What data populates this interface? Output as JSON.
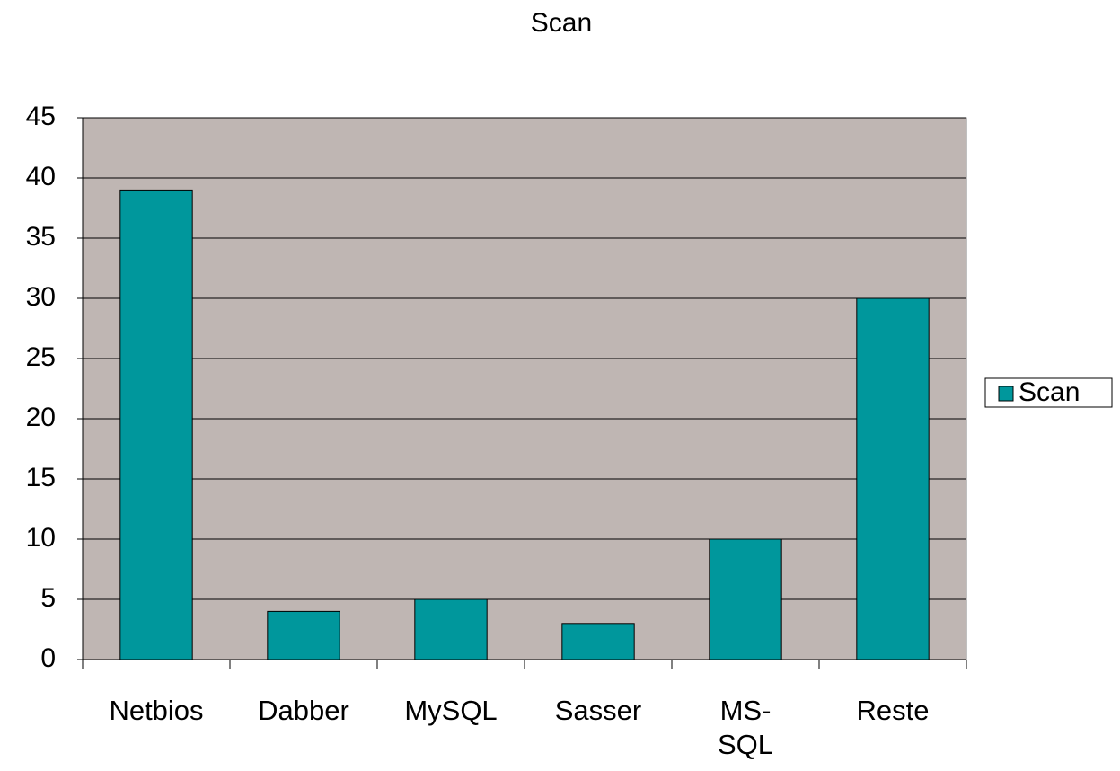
{
  "chart_data": {
    "type": "bar",
    "title": "Scan",
    "categories": [
      "Netbios",
      "Dabber",
      "MySQL",
      "Sasser",
      "MS-SQL",
      "Reste"
    ],
    "series": [
      {
        "name": "Scan",
        "color": "#00979c",
        "values": [
          39,
          4,
          5,
          3,
          10,
          30
        ]
      }
    ],
    "ylim": [
      0,
      45
    ],
    "yticks": [
      0,
      5,
      10,
      15,
      20,
      25,
      30,
      35,
      40,
      45
    ],
    "grid": true,
    "legend": "right",
    "plot_background": "#bfb6b3"
  }
}
